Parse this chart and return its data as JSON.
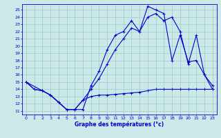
{
  "xlabel": "Graphe des températures (°c)",
  "bg_color": "#cce8e8",
  "grid_color": "#99cccc",
  "line_color": "#0000cc",
  "xlim": [
    -0.5,
    23.5
  ],
  "ylim": [
    10.5,
    25.8
  ],
  "xticks": [
    0,
    1,
    2,
    3,
    4,
    5,
    6,
    7,
    8,
    9,
    10,
    11,
    12,
    13,
    14,
    15,
    16,
    17,
    18,
    19,
    20,
    21,
    22,
    23
  ],
  "yticks": [
    11,
    12,
    13,
    14,
    15,
    16,
    17,
    18,
    19,
    20,
    21,
    22,
    23,
    24,
    25
  ],
  "line1_x": [
    0,
    1,
    2,
    3,
    4,
    5,
    6,
    7,
    8,
    9,
    10,
    11,
    12,
    13,
    14,
    15,
    16,
    17,
    18,
    19,
    20,
    21,
    22,
    23
  ],
  "line1_y": [
    15.0,
    14.0,
    13.8,
    13.2,
    12.2,
    11.2,
    11.2,
    11.2,
    14.5,
    16.5,
    19.5,
    21.5,
    22.0,
    23.5,
    22.0,
    25.5,
    25.0,
    24.5,
    18.0,
    21.5,
    17.8,
    18.0,
    16.0,
    14.5
  ],
  "line2_x": [
    0,
    2,
    3,
    4,
    5,
    6,
    7,
    8,
    9,
    10,
    11,
    12,
    13,
    14,
    15,
    16,
    17,
    18,
    19,
    20,
    21,
    22,
    23
  ],
  "line2_y": [
    15.0,
    13.8,
    13.2,
    12.2,
    11.2,
    11.2,
    12.5,
    14.0,
    15.5,
    17.5,
    19.5,
    21.0,
    22.5,
    22.0,
    24.0,
    24.5,
    23.5,
    24.0,
    22.0,
    17.5,
    21.5,
    16.0,
    14.0
  ],
  "line3_x": [
    0,
    1,
    2,
    3,
    4,
    5,
    6,
    7,
    8,
    9,
    10,
    11,
    12,
    13,
    14,
    15,
    16,
    17,
    18,
    19,
    20,
    21,
    22,
    23
  ],
  "line3_y": [
    15.0,
    14.0,
    13.8,
    13.2,
    12.2,
    11.2,
    11.2,
    12.5,
    13.0,
    13.2,
    13.2,
    13.3,
    13.4,
    13.5,
    13.6,
    13.8,
    14.0,
    14.0,
    14.0,
    14.0,
    14.0,
    14.0,
    14.0,
    14.0
  ]
}
